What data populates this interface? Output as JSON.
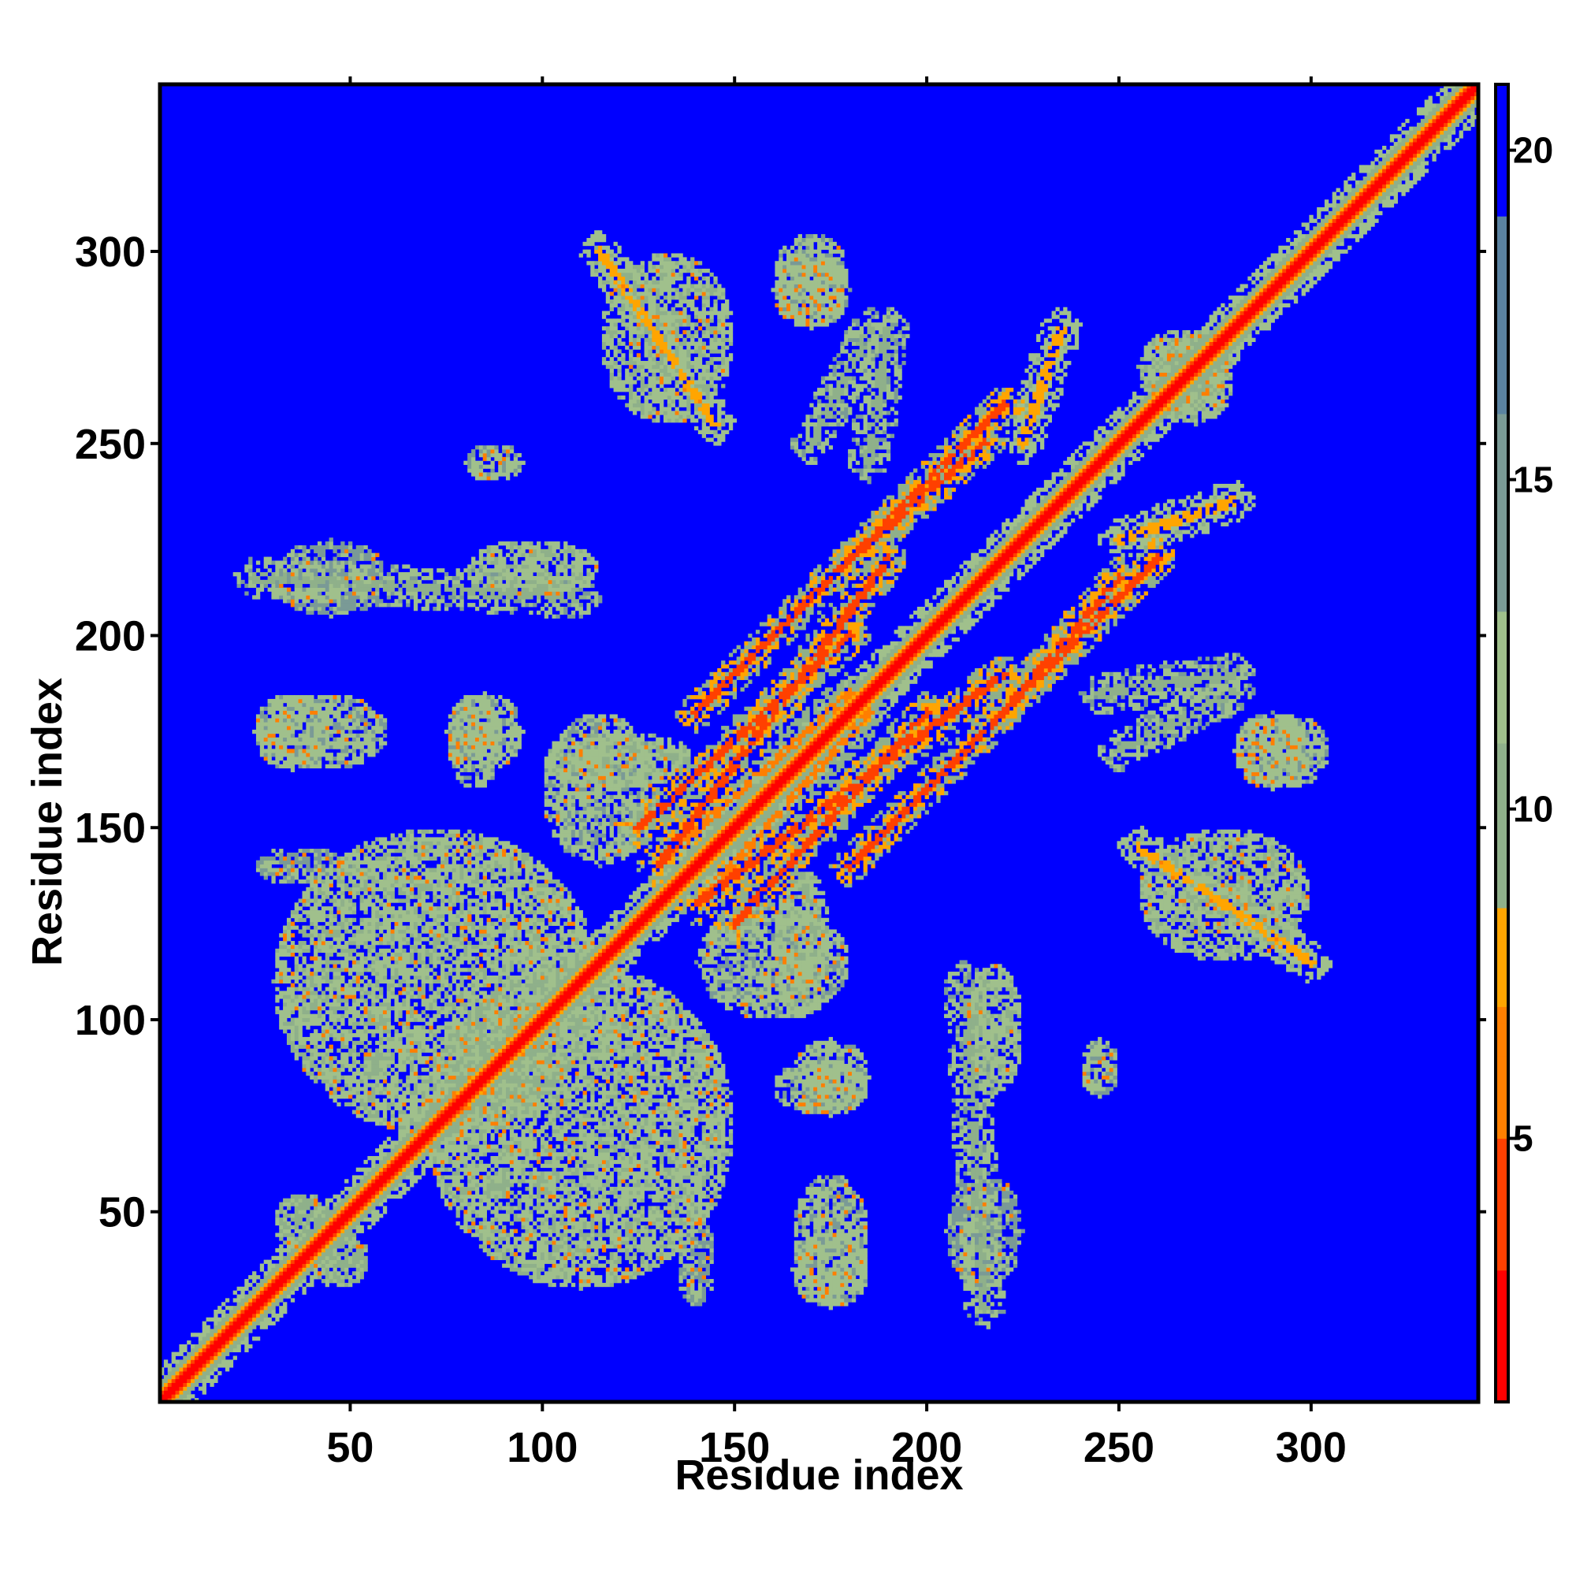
{
  "chart_data": {
    "type": "heatmap",
    "title": "",
    "xlabel": "Residue index",
    "ylabel": "Residue index",
    "n_residues": 343,
    "xlim": [
      1,
      343
    ],
    "ylim": [
      1,
      343
    ],
    "x_ticks": [
      50,
      100,
      150,
      200,
      250,
      300
    ],
    "y_ticks": [
      50,
      100,
      150,
      200,
      250,
      300
    ],
    "colorbar": {
      "ticks": [
        5,
        10,
        15,
        20
      ],
      "range": [
        1,
        21
      ],
      "colors": {
        "low": "#ff0000",
        "mid_low": "#ff7f00",
        "mid": "#ffa500",
        "mid_high": "#a0c08c",
        "high": "#5a82a0",
        "max": "#0000ff"
      }
    },
    "background_color": "#0000ff",
    "features": [
      {
        "type": "diagonal",
        "from": 1,
        "to": 343,
        "core_value": 2,
        "halfwidth_value": 9
      },
      {
        "type": "block",
        "x": [
          70,
          150
        ],
        "y": [
          30,
          115
        ],
        "value": 11
      },
      {
        "type": "block",
        "x": [
          25,
          45
        ],
        "y": [
          165,
          185
        ],
        "value": 12
      },
      {
        "type": "block",
        "x": [
          25,
          50
        ],
        "y": [
          135,
          145
        ],
        "value": 13
      },
      {
        "type": "band",
        "from": [
          25,
          215
        ],
        "to": [
          110,
          210
        ],
        "value": 12
      },
      {
        "type": "block",
        "x": [
          75,
          95
        ],
        "y": [
          165,
          185
        ],
        "value": 12
      },
      {
        "type": "block",
        "x": [
          100,
          140
        ],
        "y": [
          160,
          175
        ],
        "value": 11
      },
      {
        "type": "band",
        "from": [
          115,
          300
        ],
        "to": [
          145,
          255
        ],
        "value": 11
      },
      {
        "type": "block",
        "x": [
          160,
          180
        ],
        "y": [
          280,
          300
        ],
        "value": 12
      },
      {
        "type": "band",
        "from": [
          170,
          250
        ],
        "to": [
          185,
          280
        ],
        "value": 12
      },
      {
        "type": "band",
        "from": [
          180,
          220
        ],
        "to": [
          215,
          250
        ],
        "value": 8
      },
      {
        "type": "band",
        "from": [
          125,
          150
        ],
        "to": [
          180,
          200
        ],
        "value": 8
      },
      {
        "type": "band",
        "from": [
          140,
          130
        ],
        "to": [
          220,
          190
        ],
        "value": 8
      },
      {
        "type": "band",
        "from": [
          180,
          140
        ],
        "to": [
          260,
          220
        ],
        "value": 8
      },
      {
        "type": "band",
        "from": [
          140,
          130
        ],
        "to": [
          185,
          180
        ],
        "value": 9
      },
      {
        "type": "block",
        "x": [
          140,
          180
        ],
        "y": [
          100,
          130
        ],
        "value": 12
      },
      {
        "type": "block",
        "x": [
          160,
          185
        ],
        "y": [
          75,
          90
        ],
        "value": 12
      },
      {
        "type": "block",
        "x": [
          165,
          185
        ],
        "y": [
          25,
          60
        ],
        "value": 12
      },
      {
        "type": "block",
        "x": [
          210,
          225
        ],
        "y": [
          80,
          115
        ],
        "value": 11
      },
      {
        "type": "block",
        "x": [
          205,
          225
        ],
        "y": [
          30,
          60
        ],
        "value": 13
      },
      {
        "type": "block",
        "x": [
          240,
          250
        ],
        "y": [
          80,
          95
        ],
        "value": 12
      },
      {
        "type": "block",
        "x": [
          255,
          300
        ],
        "y": [
          115,
          150
        ],
        "value": 11
      },
      {
        "type": "block",
        "x": [
          280,
          305
        ],
        "y": [
          160,
          180
        ],
        "value": 12
      },
      {
        "type": "band",
        "from": [
          245,
          185
        ],
        "to": [
          280,
          190
        ],
        "value": 12
      },
      {
        "type": "block",
        "x": [
          260,
          280
        ],
        "y": [
          255,
          280
        ],
        "value": 11
      },
      {
        "type": "band",
        "from": [
          225,
          250
        ],
        "to": [
          235,
          280
        ],
        "value": 11
      },
      {
        "type": "block",
        "x": [
          30,
          45
        ],
        "y": [
          40,
          55
        ],
        "value": 10
      }
    ]
  }
}
